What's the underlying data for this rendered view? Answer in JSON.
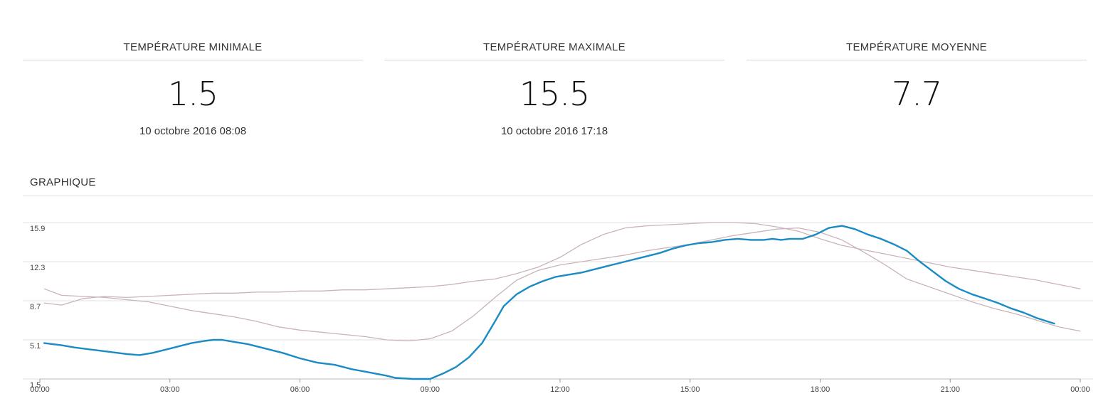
{
  "stats": [
    {
      "title": "TEMPÉRATURE MINIMALE",
      "value": "1.5",
      "date": "10 octobre 2016 08:08"
    },
    {
      "title": "TEMPÉRATURE MAXIMALE",
      "value": "15.5",
      "date": "10 octobre 2016 17:18"
    },
    {
      "title": "TEMPÉRATURE MOYENNE",
      "value": "7.7",
      "date": ""
    }
  ],
  "section_title": "GRAPHIQUE",
  "colors": {
    "main": "#1a8bc4",
    "secondary": "#c9b4b8",
    "grid": "#e2e2e2"
  },
  "chart_data": {
    "type": "line",
    "title": "",
    "xlabel": "",
    "ylabel": "",
    "xlim": [
      0,
      24
    ],
    "ylim": [
      1.5,
      15.9
    ],
    "yticks": [
      1.5,
      5.1,
      8.7,
      12.3,
      15.9
    ],
    "ytick_labels": [
      "1.5",
      "5.1",
      "8.7",
      "12.3",
      "15.9"
    ],
    "xticks": [
      0,
      3,
      6,
      9,
      12,
      15,
      18,
      21,
      24
    ],
    "xtick_labels": [
      "00:00",
      "03:00",
      "06:00",
      "09:00",
      "12:00",
      "15:00",
      "18:00",
      "21:00",
      "00:00"
    ],
    "grid": true,
    "series": [
      {
        "x": [
          0.1,
          0.5,
          0.8,
          1.2,
          1.6,
          2.0,
          2.3,
          2.6,
          2.9,
          3.2,
          3.5,
          3.8,
          4.0,
          4.2,
          4.5,
          4.8,
          5.2,
          5.6,
          6.0,
          6.4,
          6.8,
          7.2,
          7.6,
          8.0,
          8.2,
          8.6,
          9.0,
          9.3,
          9.6,
          9.9,
          10.2,
          10.5,
          10.7,
          11.0,
          11.3,
          11.6,
          11.9,
          12.2,
          12.5,
          12.8,
          13.1,
          13.4,
          13.7,
          14.0,
          14.3,
          14.6,
          14.9,
          15.2,
          15.5,
          15.8,
          16.1,
          16.4,
          16.7,
          16.9,
          17.1,
          17.3,
          17.6,
          17.9,
          18.2,
          18.5,
          18.8,
          19.1,
          19.4,
          19.7,
          20.0,
          20.3,
          20.6,
          20.9,
          21.2,
          21.5,
          21.8,
          22.1,
          22.4,
          22.7,
          23.0,
          23.4
        ],
        "values": [
          4.8,
          4.6,
          4.4,
          4.2,
          4.0,
          3.8,
          3.7,
          3.9,
          4.2,
          4.5,
          4.8,
          5.0,
          5.1,
          5.1,
          4.9,
          4.7,
          4.3,
          3.9,
          3.4,
          3.0,
          2.8,
          2.4,
          2.1,
          1.8,
          1.6,
          1.5,
          1.5,
          2.0,
          2.6,
          3.5,
          4.8,
          6.8,
          8.2,
          9.3,
          10.0,
          10.5,
          10.9,
          11.1,
          11.3,
          11.6,
          11.9,
          12.2,
          12.5,
          12.8,
          13.1,
          13.5,
          13.8,
          14.0,
          14.1,
          14.3,
          14.4,
          14.3,
          14.3,
          14.4,
          14.3,
          14.4,
          14.4,
          14.8,
          15.4,
          15.6,
          15.3,
          14.8,
          14.4,
          13.9,
          13.3,
          12.3,
          11.4,
          10.5,
          9.8,
          9.3,
          8.9,
          8.5,
          8.0,
          7.6,
          7.1,
          6.6
        ]
      },
      {
        "x": [
          0.1,
          0.5,
          1.0,
          1.5,
          2.0,
          2.5,
          3.0,
          3.5,
          4.0,
          4.5,
          5.0,
          5.5,
          6.0,
          6.5,
          7.0,
          7.5,
          8.0,
          8.5,
          9.0,
          9.5,
          10.0,
          10.5,
          11.0,
          11.5,
          12.0,
          12.5,
          13.0,
          13.5,
          14.0,
          14.5,
          15.0,
          15.5,
          16.0,
          16.5,
          17.0,
          17.5,
          18.0,
          18.5,
          19.0,
          19.5,
          20.0,
          20.5,
          21.0,
          21.5,
          22.0,
          22.5,
          23.0,
          23.5,
          24.0
        ],
        "values": [
          9.8,
          9.2,
          9.1,
          9.0,
          8.8,
          8.6,
          8.2,
          7.8,
          7.5,
          7.2,
          6.8,
          6.3,
          6.0,
          5.8,
          5.6,
          5.4,
          5.1,
          5.0,
          5.2,
          5.9,
          7.3,
          9.0,
          10.6,
          11.5,
          12.0,
          12.3,
          12.6,
          12.9,
          13.3,
          13.6,
          13.9,
          14.3,
          14.7,
          15.0,
          15.3,
          15.4,
          15.0,
          14.3,
          13.2,
          12.0,
          10.7,
          10.0,
          9.3,
          8.6,
          8.0,
          7.5,
          6.9,
          6.3,
          5.9
        ]
      },
      {
        "x": [
          0.1,
          0.5,
          1.0,
          1.5,
          2.0,
          2.5,
          3.0,
          3.5,
          4.0,
          4.5,
          5.0,
          5.5,
          6.0,
          6.5,
          7.0,
          7.5,
          8.0,
          8.5,
          9.0,
          9.5,
          10.0,
          10.5,
          11.0,
          11.5,
          12.0,
          12.5,
          13.0,
          13.5,
          14.0,
          14.5,
          15.0,
          15.5,
          16.0,
          16.5,
          17.0,
          17.5,
          18.0,
          18.5,
          19.0,
          19.5,
          20.0,
          20.5,
          21.0,
          21.5,
          22.0,
          22.5,
          23.0,
          23.5,
          24.0
        ],
        "values": [
          8.5,
          8.3,
          8.9,
          9.1,
          9.0,
          9.1,
          9.2,
          9.3,
          9.4,
          9.4,
          9.5,
          9.5,
          9.6,
          9.6,
          9.7,
          9.7,
          9.8,
          9.9,
          10.0,
          10.2,
          10.5,
          10.7,
          11.2,
          11.8,
          12.7,
          13.9,
          14.8,
          15.4,
          15.6,
          15.7,
          15.8,
          15.9,
          15.9,
          15.8,
          15.5,
          15.1,
          14.4,
          13.8,
          13.4,
          13.0,
          12.6,
          12.2,
          11.8,
          11.5,
          11.2,
          10.9,
          10.6,
          10.2,
          9.8
        ]
      }
    ]
  }
}
